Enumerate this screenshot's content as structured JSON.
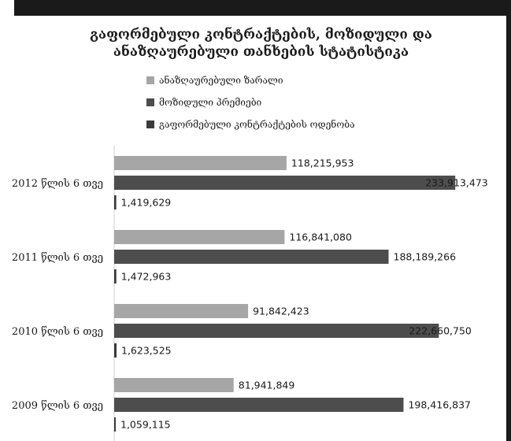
{
  "colors": {
    "background": "#ffffff",
    "frame": "#1a1a1a",
    "text": "#1a1a1a"
  },
  "chart_data": {
    "type": "bar",
    "orientation": "horizontal",
    "title_lines": [
      "გაფორმებული კონტრაქტების, მოზიდული და",
      "ანაზღაურებული თანხების სტატისტიკა"
    ],
    "categories": [
      "2012 წლის 6 თვე",
      "2011 წლის 6 თვე",
      "2010 წლის 6 თვე",
      "2009 წლის 6 თვე"
    ],
    "series": [
      {
        "name": "ანაზღაურებული ზარალი",
        "color": "#a6a6a6",
        "values": [
          118215953,
          116841080,
          91842423,
          81941849
        ],
        "labels": [
          "118,215,953",
          "116,841,080",
          "91,842,423",
          "81,941,849"
        ]
      },
      {
        "name": "მოზიდული პრემიები",
        "color": "#4d4d4d",
        "values": [
          233913473,
          188189266,
          222660750,
          198416837
        ],
        "labels": [
          "233,913,473",
          "188,189,266",
          "222,660,750",
          "198,416,837"
        ]
      },
      {
        "name": "გაფორმებული კონტრაქტების ოდენობა",
        "color": "#3a3a3a",
        "values": [
          1419629,
          1472963,
          1623525,
          1059115
        ],
        "labels": [
          "1,419,629",
          "1,472,963",
          "1,623,525",
          "1,059,115"
        ]
      }
    ],
    "xlim": [
      0,
      250000000
    ],
    "legend_position": "top",
    "grid": false
  }
}
